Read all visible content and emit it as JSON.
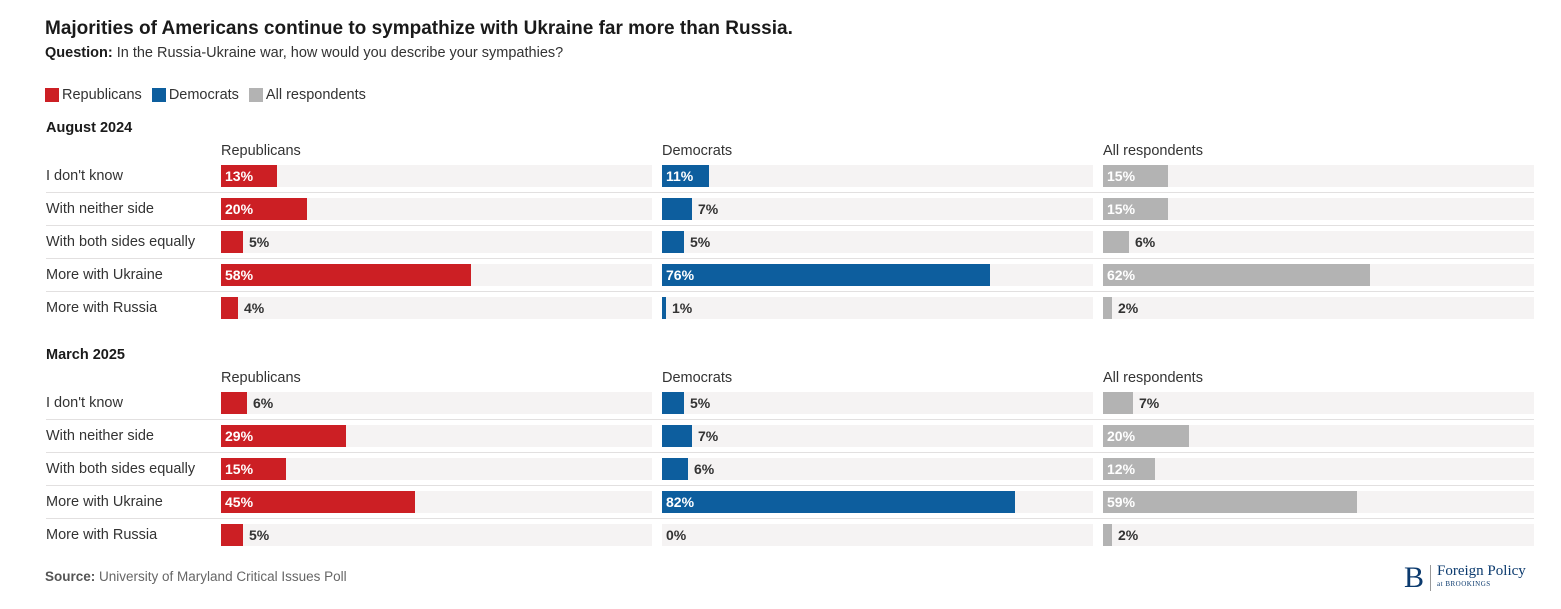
{
  "title": "Majorities of Americans continue to sympathize with Ukraine far more than Russia.",
  "question_label": "Question:",
  "question_text": "In the Russia-Ukraine war, how would you describe your sympathies?",
  "legend": [
    {
      "label": "Republicans",
      "color": "#cc1f24"
    },
    {
      "label": "Democrats",
      "color": "#0d5e9e"
    },
    {
      "label": "All respondents",
      "color": "#b3b3b3"
    }
  ],
  "source_label": "Source:",
  "source_text": "University of Maryland Critical Issues Poll",
  "logo": {
    "letter": "B",
    "main": "Foreign Policy",
    "sub": "at BROOKINGS"
  },
  "chart_data": {
    "type": "bar",
    "orientation": "horizontal",
    "value_unit": "%",
    "xlim": [
      0,
      100
    ],
    "categories": [
      "I don't know",
      "With neither side",
      "With both sides equally",
      "More with Ukraine",
      "More with Russia"
    ],
    "panels": [
      {
        "title": "August 2024",
        "series": [
          {
            "name": "Republicans",
            "color": "#cc1f24",
            "values": [
              13,
              20,
              5,
              58,
              4
            ]
          },
          {
            "name": "Democrats",
            "color": "#0d5e9e",
            "values": [
              11,
              7,
              5,
              76,
              1
            ]
          },
          {
            "name": "All respondents",
            "color": "#b3b3b3",
            "values": [
              15,
              15,
              6,
              62,
              2
            ]
          }
        ]
      },
      {
        "title": "March 2025",
        "series": [
          {
            "name": "Republicans",
            "color": "#cc1f24",
            "values": [
              6,
              29,
              15,
              45,
              5
            ]
          },
          {
            "name": "Democrats",
            "color": "#0d5e9e",
            "values": [
              5,
              7,
              6,
              82,
              0
            ]
          },
          {
            "name": "All respondents",
            "color": "#b3b3b3",
            "values": [
              7,
              20,
              12,
              59,
              2
            ]
          }
        ]
      }
    ]
  }
}
